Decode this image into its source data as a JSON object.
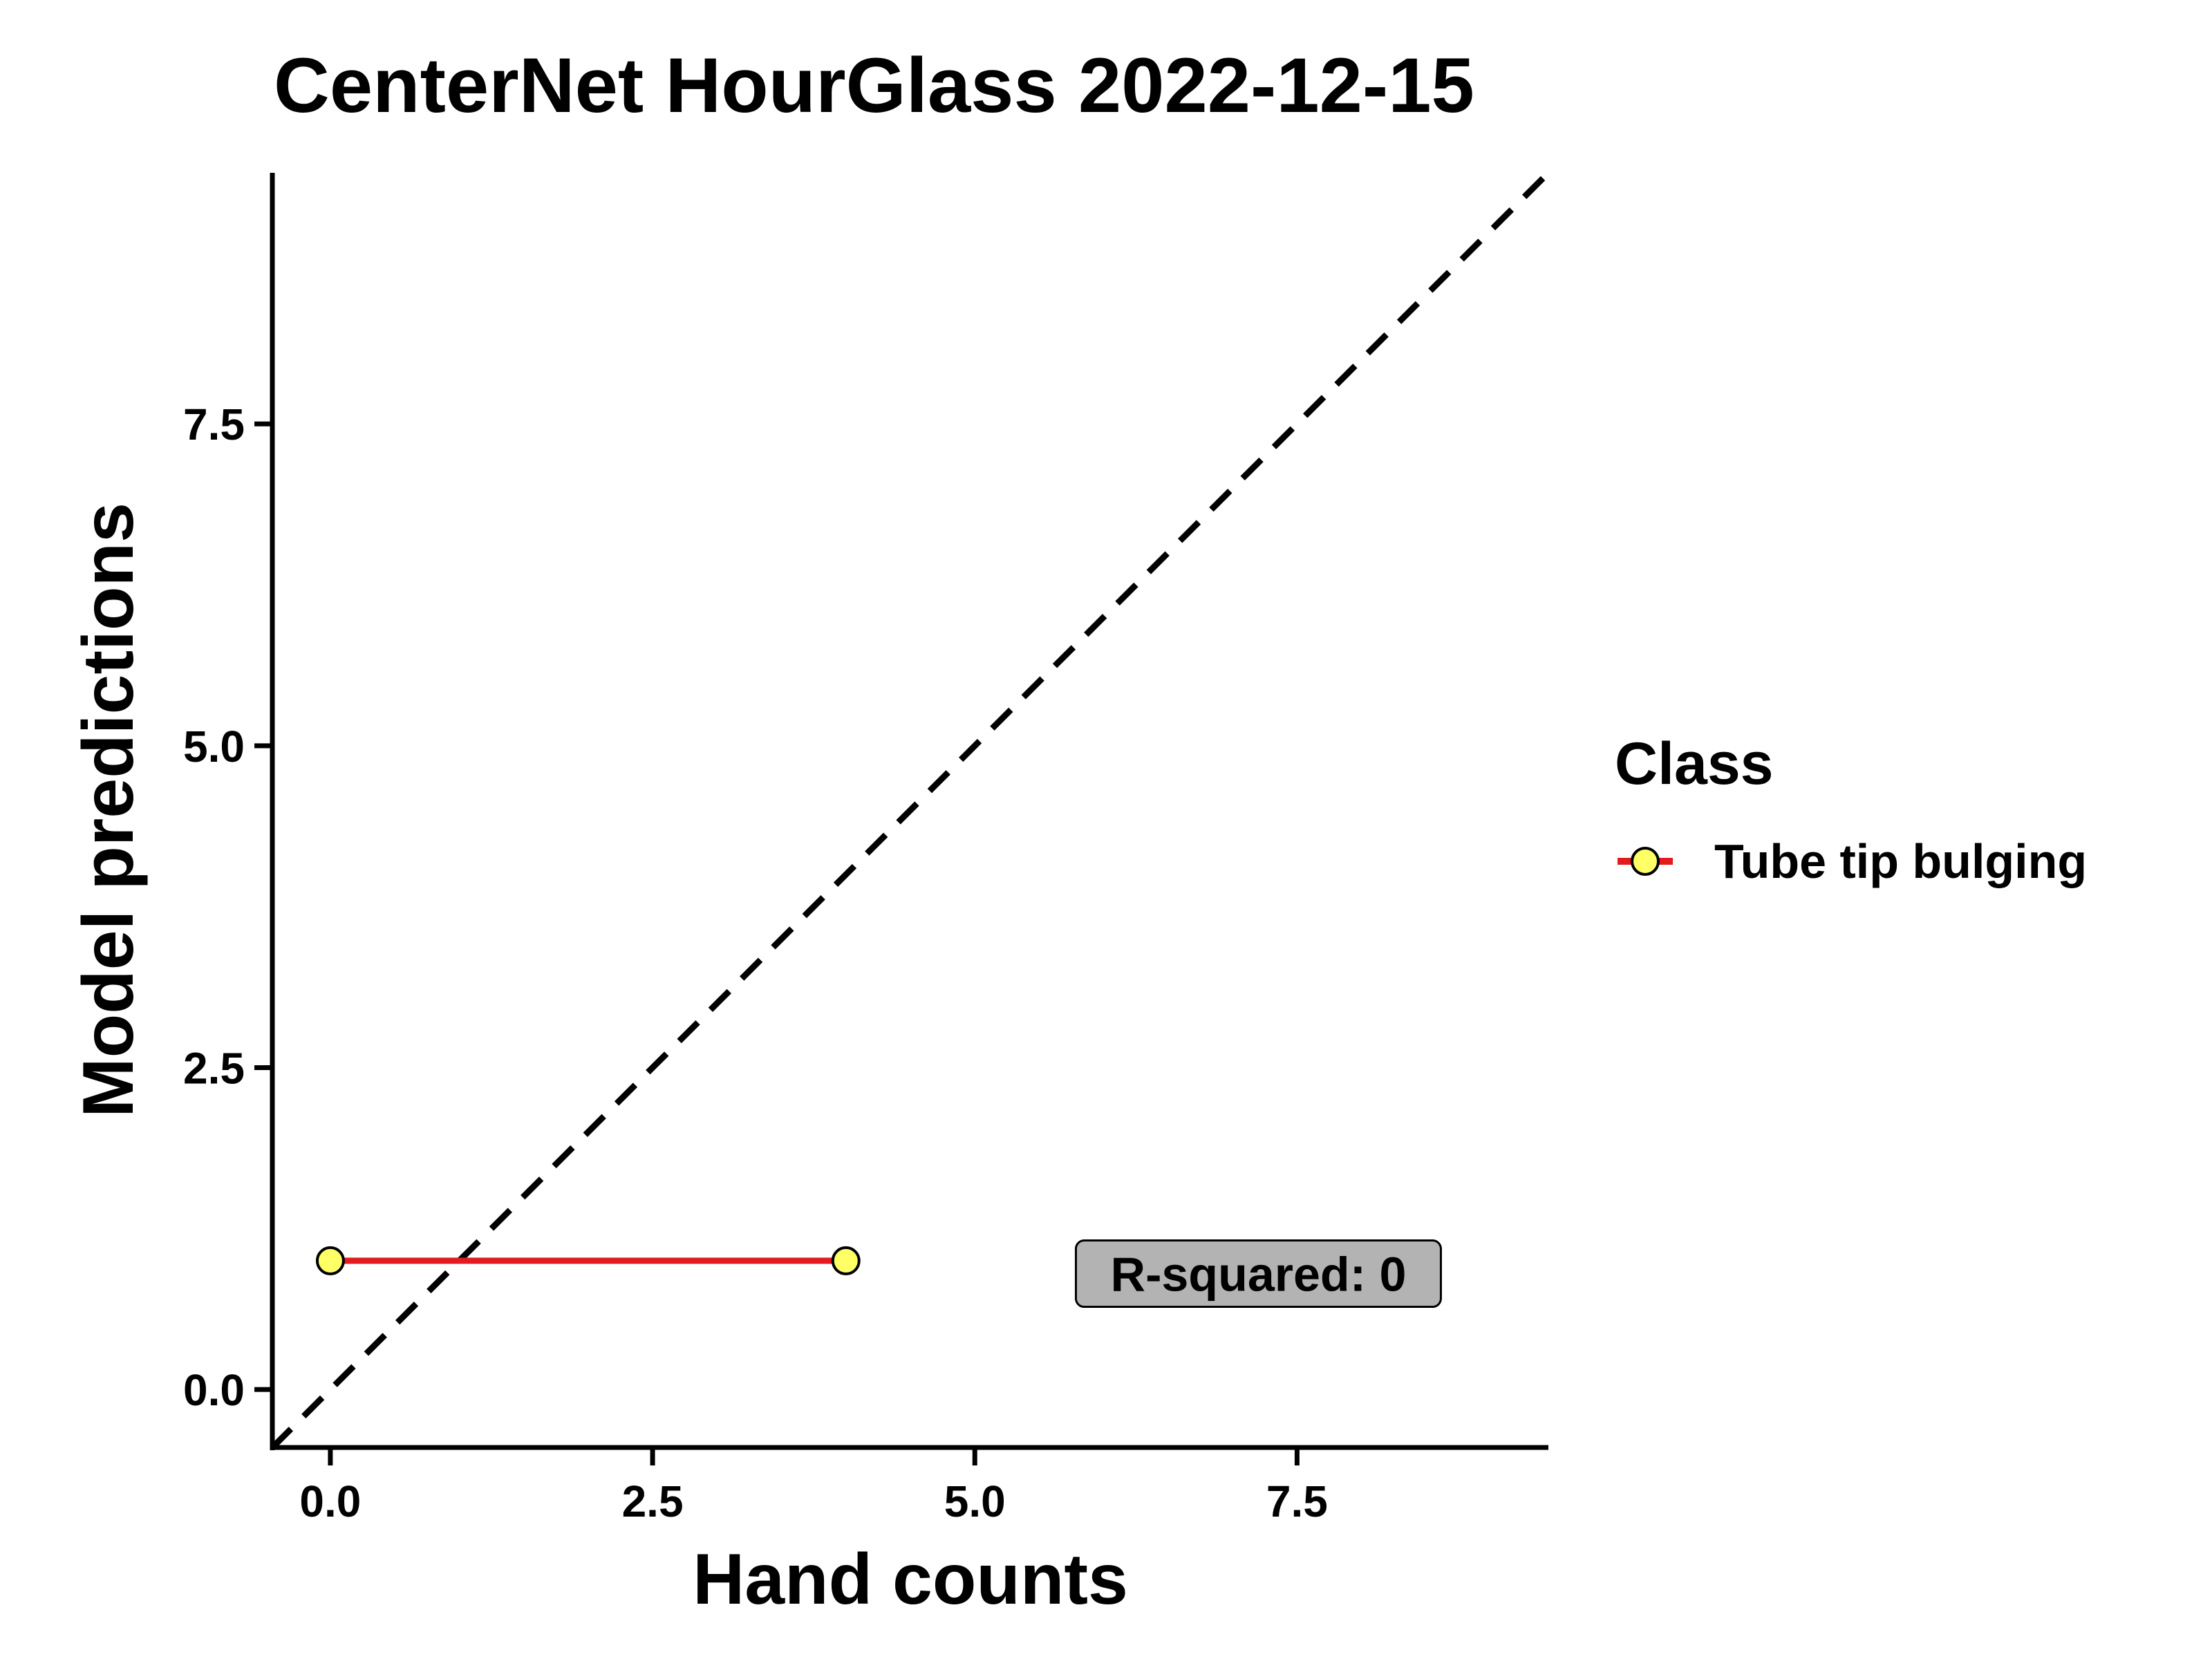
{
  "chart_data": {
    "type": "scatter",
    "title": "CenterNet HourGlass 2022-12-15",
    "xlabel": "Hand counts",
    "ylabel": "Model predictions",
    "xlim": [
      -0.45,
      9.45
    ],
    "ylim": [
      -0.45,
      9.45
    ],
    "x_ticks": [
      0,
      2.5,
      5,
      7.5
    ],
    "x_tick_labels": [
      "0.0",
      "2.5",
      "5.0",
      "7.5"
    ],
    "y_ticks": [
      0,
      2.5,
      5,
      7.5
    ],
    "y_tick_labels": [
      "0.0",
      "2.5",
      "5.0",
      "7.5"
    ],
    "grid": false,
    "reference_line": {
      "style": "dashed",
      "slope": 1,
      "intercept": 0
    },
    "series": [
      {
        "name": "Tube tip bulging",
        "x": [
          0,
          4
        ],
        "y": [
          1,
          1
        ],
        "line_color": "#E41A1C",
        "point_fill": "#FFFF66",
        "point_stroke": "#000000"
      }
    ],
    "legend": {
      "title": "Class",
      "position": "right"
    },
    "annotation": {
      "text": "R-squared: 0",
      "x": 7.2,
      "y": 0.9,
      "fill": "#B3B3B3"
    }
  }
}
